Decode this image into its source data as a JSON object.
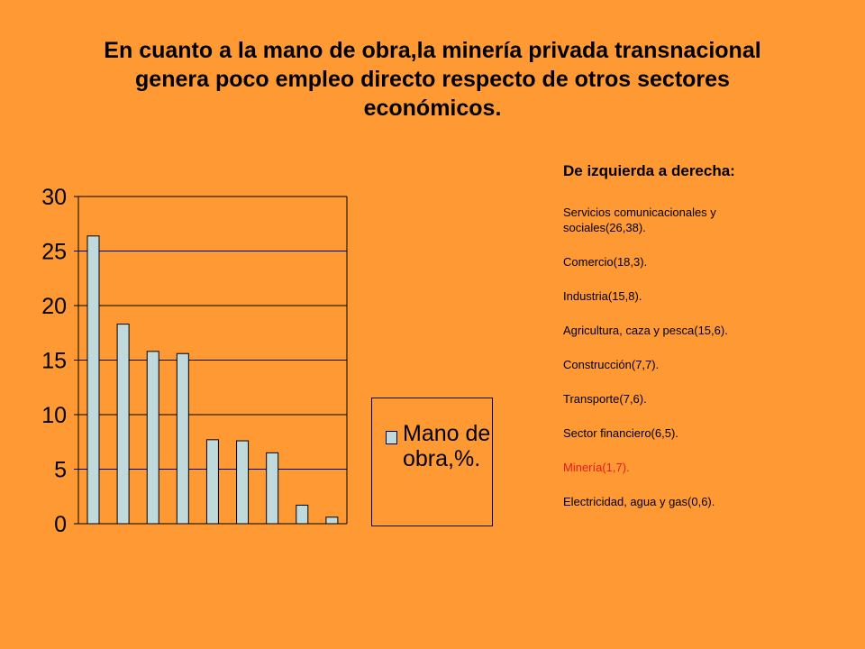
{
  "title_lines": [
    "En cuanto a la mano de obra,la minería privada transnacional",
    "genera poco empleo directo respecto de otros sectores",
    "económicos."
  ],
  "colors": {
    "background": "#ff9933",
    "bar_fill": "#c0d9dc",
    "highlight_text": "#e31c1c"
  },
  "legend": {
    "label": "Mano de obra,%."
  },
  "description": {
    "heading": "De izquierda a derecha:",
    "items": [
      {
        "text": "Servicios comunicacionales y sociales(26,38).",
        "highlight": false
      },
      {
        "text": "Comercio(18,3).",
        "highlight": false
      },
      {
        "text": "Industria(15,8).",
        "highlight": false
      },
      {
        "text": "Agricultura, caza y pesca(15,6).",
        "highlight": false
      },
      {
        "text": "Construcción(7,7).",
        "highlight": false
      },
      {
        "text": "Transporte(7,6).",
        "highlight": false
      },
      {
        "text": "Sector financiero(6,5).",
        "highlight": false
      },
      {
        "text": "Minería(1,7).",
        "highlight": true
      },
      {
        "text": "Electricidad, agua y gas(0,6).",
        "highlight": false
      }
    ]
  },
  "chart_data": {
    "type": "bar",
    "categories": [
      "",
      "",
      "",
      "",
      "",
      "",
      "",
      "",
      ""
    ],
    "series": [
      {
        "name": "Mano de obra,%.",
        "values": [
          26.38,
          18.3,
          15.8,
          15.6,
          7.7,
          7.6,
          6.5,
          1.7,
          0.6
        ]
      }
    ],
    "yticks": [
      "0",
      "5",
      "10",
      "15",
      "20",
      "25",
      "30"
    ],
    "ylim": [
      0,
      30
    ],
    "grid": true,
    "legend_position": "right"
  }
}
